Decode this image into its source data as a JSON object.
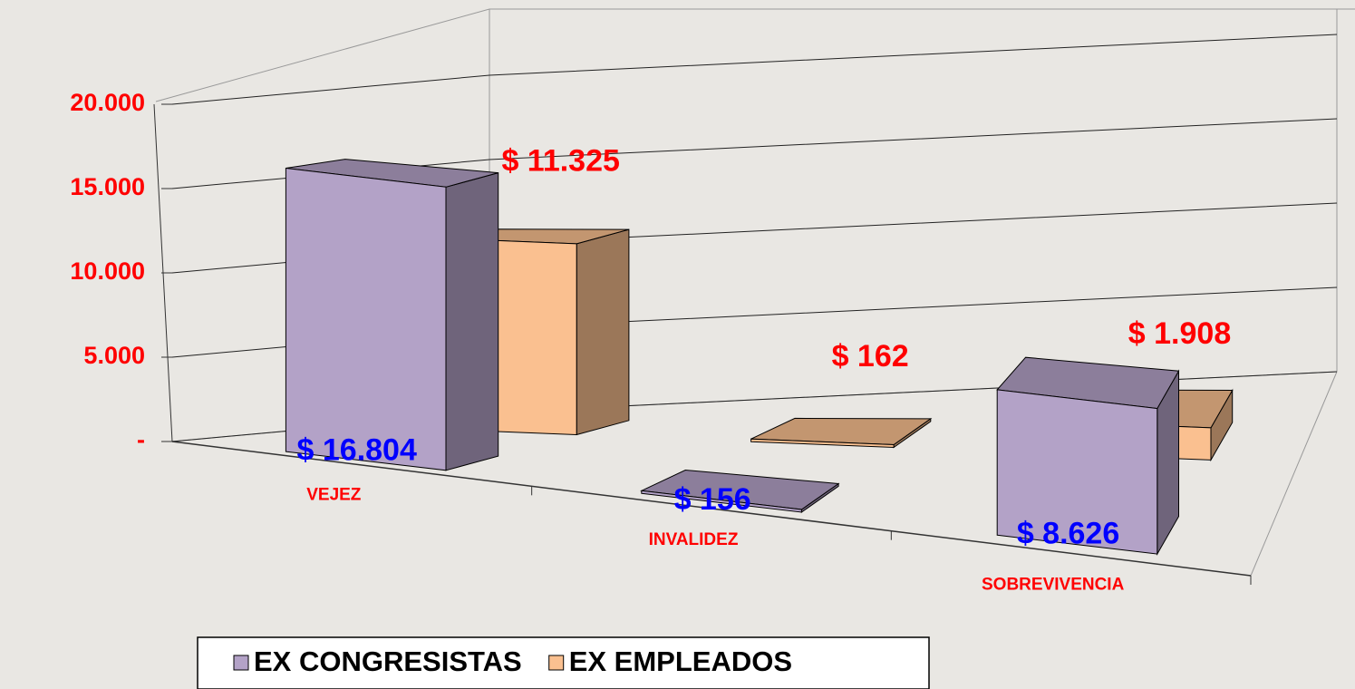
{
  "chart_data": {
    "type": "bar3d",
    "categories": [
      "VEJEZ",
      "INVALIDEZ",
      "SOBREVIVENCIA"
    ],
    "series": [
      {
        "name": "EX CONGRESISTAS",
        "color": "#b3a2c7",
        "values": [
          16804,
          156,
          8626
        ],
        "value_labels": [
          "$ 16.804",
          "$ 156",
          "$ 8.626"
        ]
      },
      {
        "name": "EX EMPLEADOS",
        "color": "#fac090",
        "values": [
          11325,
          162,
          1908
        ],
        "value_labels": [
          "$ 11.325",
          "$ 162",
          "$ 1.908"
        ]
      }
    ],
    "ylim": [
      0,
      20000
    ],
    "yticks": [
      {
        "value": 0,
        "label": "-"
      },
      {
        "value": 5000,
        "label": "5.000"
      },
      {
        "value": 10000,
        "label": "10.000"
      },
      {
        "value": 15000,
        "label": "15.000"
      },
      {
        "value": 20000,
        "label": "20.000"
      }
    ],
    "grid": true,
    "legend": "bottom"
  }
}
